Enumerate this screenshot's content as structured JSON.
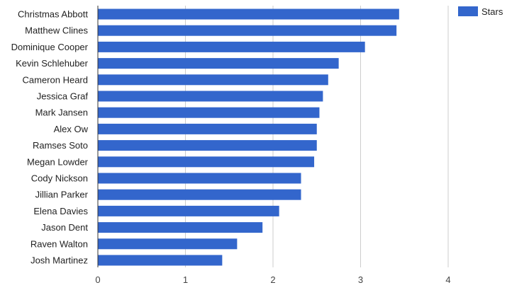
{
  "chart_data": {
    "type": "bar",
    "orientation": "horizontal",
    "categories": [
      "Christmas Abbott",
      "Matthew Clines",
      "Dominique Cooper",
      "Kevin Schlehuber",
      "Cameron Heard",
      "Jessica Graf",
      "Mark Jansen",
      "Alex Ow",
      "Ramses Soto",
      "Megan Lowder",
      "Cody Nickson",
      "Jillian Parker",
      "Elena Davies",
      "Jason Dent",
      "Raven Walton",
      "Josh Martinez"
    ],
    "series": [
      {
        "name": "Stars",
        "color": "#3366cc",
        "values": [
          3.44,
          3.41,
          3.05,
          2.75,
          2.63,
          2.57,
          2.53,
          2.5,
          2.5,
          2.47,
          2.32,
          2.32,
          2.07,
          1.88,
          1.59,
          1.42
        ]
      }
    ],
    "xlim": [
      0,
      4
    ],
    "xticks": [
      0,
      1,
      2,
      3,
      4
    ],
    "xtick_labels": [
      "0",
      "1",
      "2",
      "3",
      "4"
    ],
    "grid": true,
    "legend": {
      "position": "top-right",
      "entries": [
        "Stars"
      ]
    },
    "title": "",
    "xlabel": "",
    "ylabel": ""
  }
}
